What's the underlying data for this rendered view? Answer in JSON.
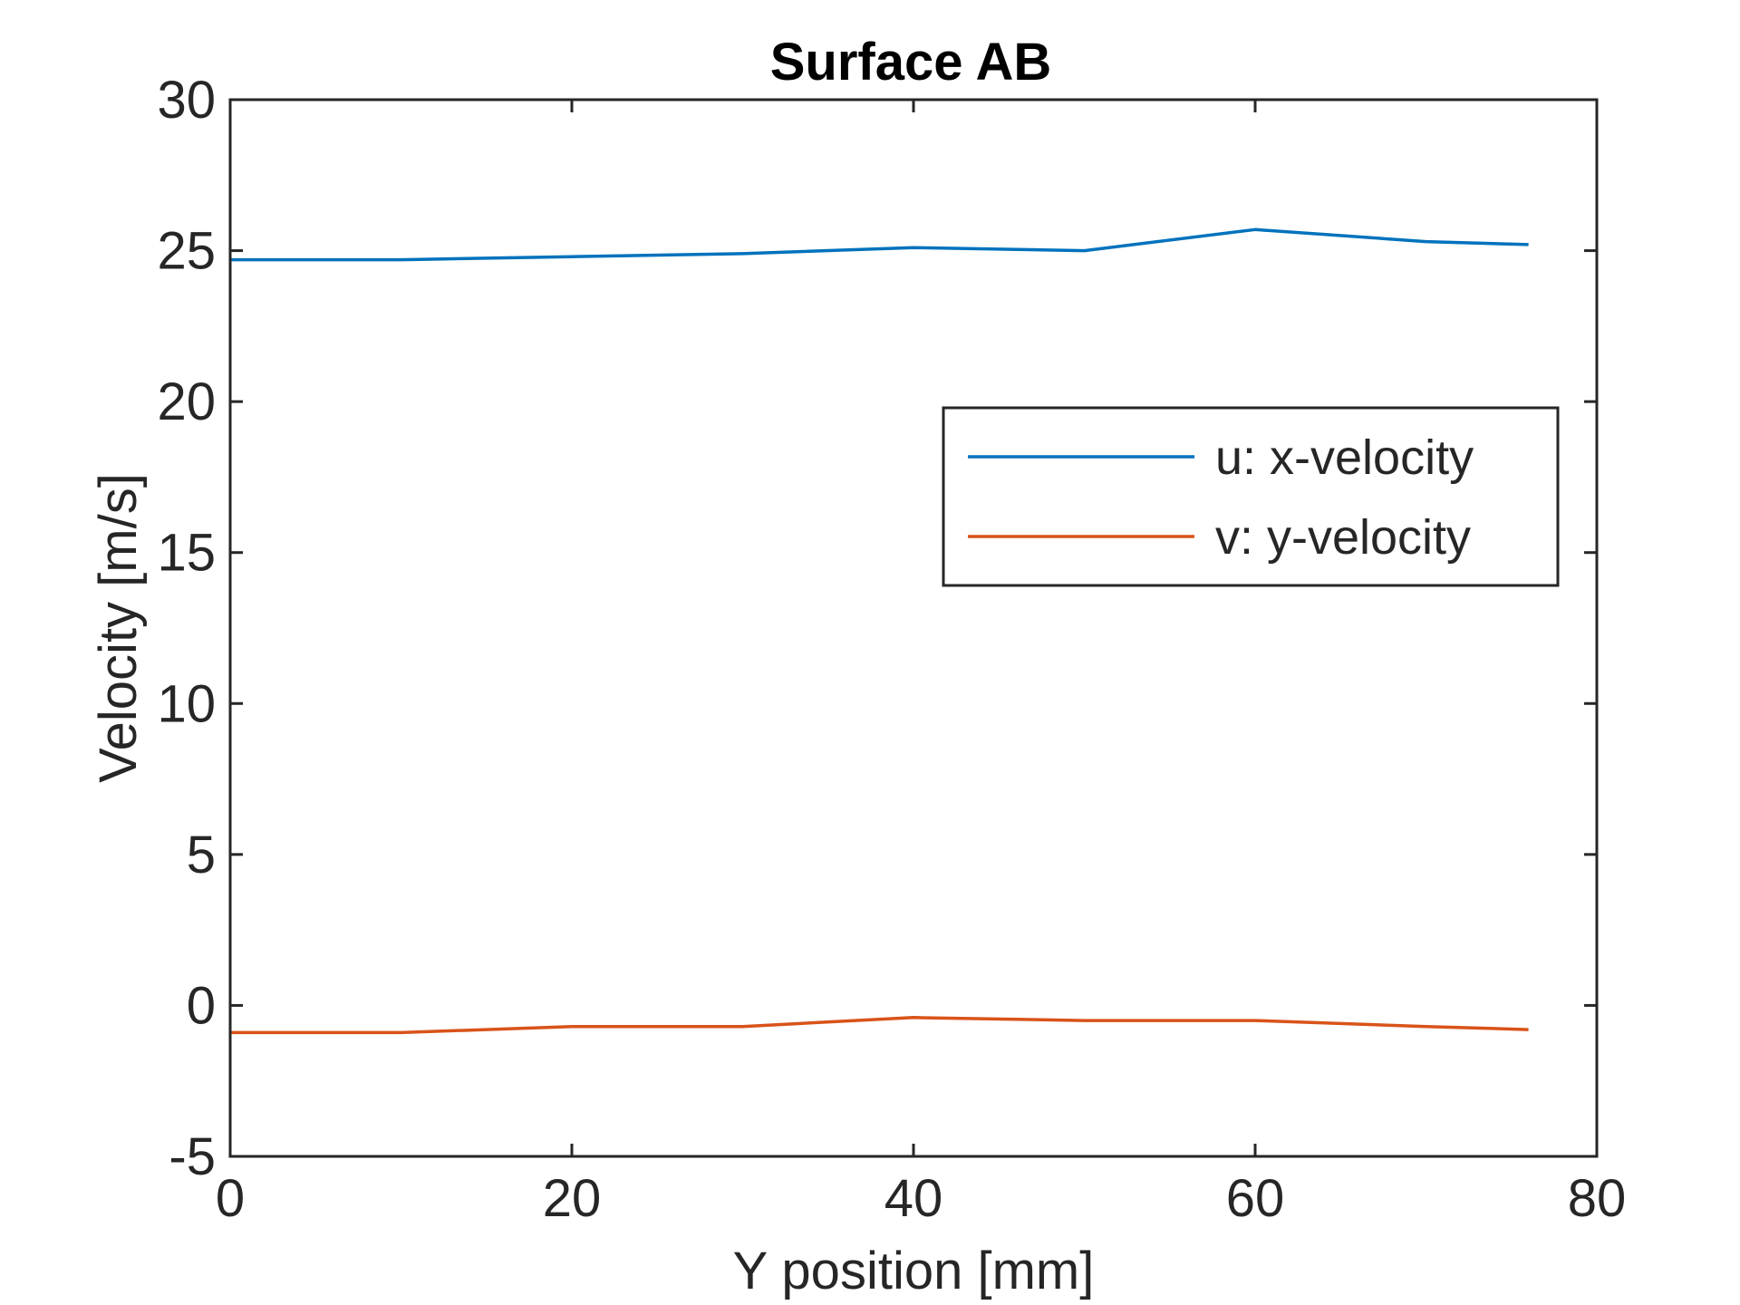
{
  "chart_data": {
    "type": "line",
    "title": "Surface AB",
    "xlabel": "Y position [mm]",
    "ylabel": "Velocity [m/s]",
    "xlim": [
      0,
      80
    ],
    "ylim": [
      -5,
      30
    ],
    "xticks": [
      0,
      20,
      40,
      60,
      80
    ],
    "yticks": [
      -5,
      0,
      5,
      10,
      15,
      20,
      25,
      30
    ],
    "xtick_labels": [
      "0",
      "20",
      "40",
      "60",
      "80"
    ],
    "ytick_labels": [
      "-5",
      "0",
      "5",
      "10",
      "15",
      "20",
      "25",
      "30"
    ],
    "grid": false,
    "legend_position": "right",
    "series": [
      {
        "name": "u: x-velocity",
        "color": "#0072BD",
        "x": [
          0,
          10,
          20,
          30,
          40,
          50,
          60,
          70,
          76
        ],
        "y": [
          24.7,
          24.7,
          24.8,
          24.9,
          25.1,
          25.0,
          25.7,
          25.3,
          25.2
        ]
      },
      {
        "name": "v: y-velocity",
        "color": "#D95319",
        "x": [
          0,
          10,
          20,
          30,
          40,
          50,
          60,
          70,
          76
        ],
        "y": [
          -0.9,
          -0.9,
          -0.7,
          -0.7,
          -0.4,
          -0.5,
          -0.5,
          -0.7,
          -0.8
        ]
      }
    ]
  }
}
